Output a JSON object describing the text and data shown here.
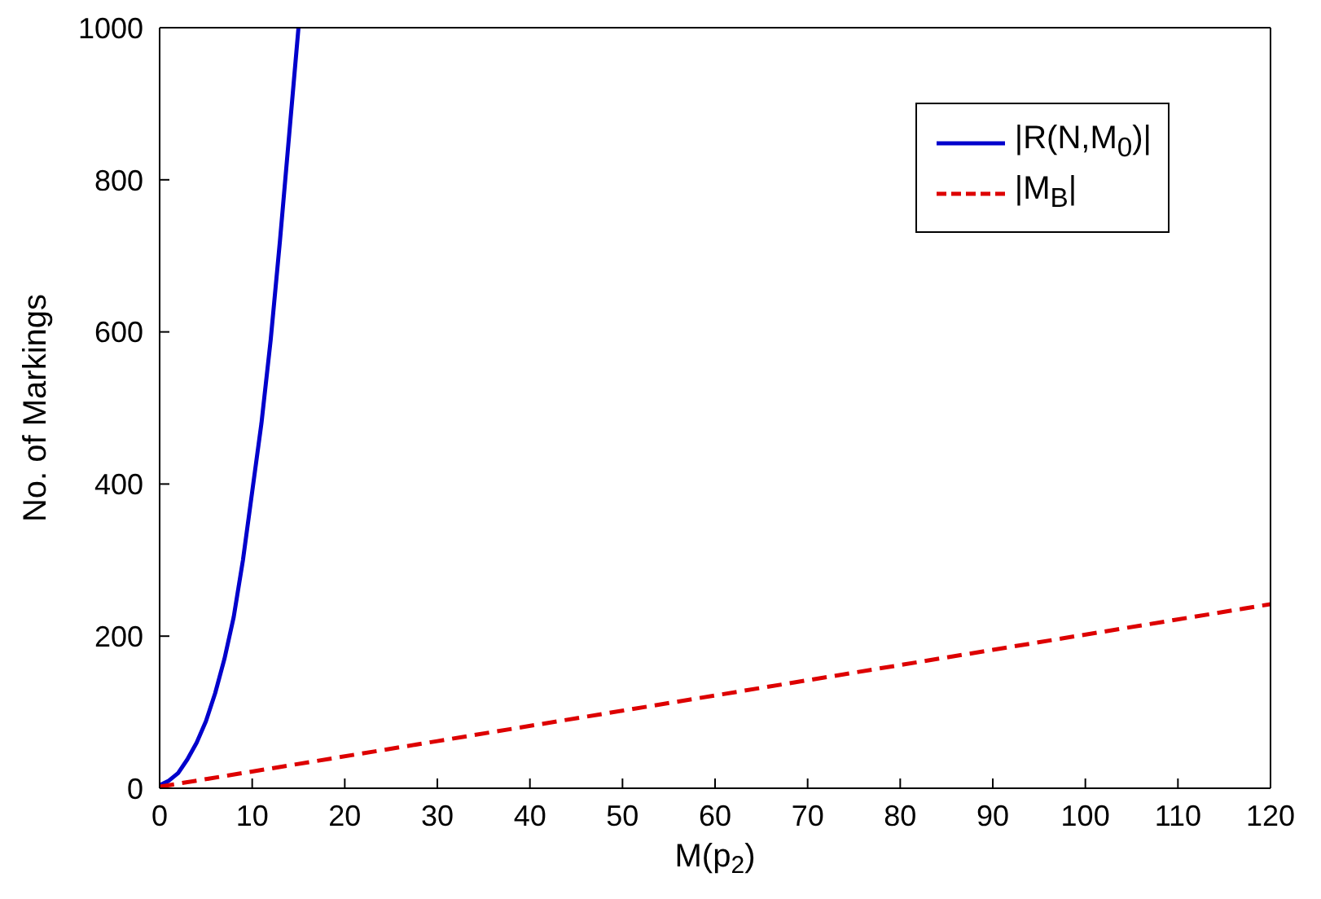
{
  "chart_data": {
    "type": "line",
    "xlabel": "M(p$_{2}$)",
    "ylabel": "No. of Markings",
    "xlim": [
      0,
      120
    ],
    "xticks": [
      0,
      10,
      20,
      30,
      40,
      50,
      60,
      70,
      80,
      90,
      100,
      110,
      120
    ],
    "ylim": [
      0,
      1000
    ],
    "yticks": [
      0,
      200,
      400,
      600,
      800,
      1000
    ],
    "legend": "top right",
    "series": [
      {
        "name": "|R(N,M$_{0}$)|",
        "color": "#0000cc",
        "line_style": "solid",
        "x": [
          0,
          1,
          2,
          3,
          4,
          5,
          6,
          7,
          8,
          9,
          10,
          11,
          12,
          13,
          14,
          15
        ],
        "values": [
          4,
          10,
          20,
          38,
          60,
          88,
          125,
          170,
          225,
          300,
          390,
          480,
          590,
          720,
          860,
          1000
        ]
      },
      {
        "name": "|M$_{B}$|",
        "color": "#dd0000",
        "line_style": "dashed",
        "x": [
          0,
          30,
          60,
          90,
          120
        ],
        "values": [
          2,
          62,
          122,
          182,
          242
        ]
      }
    ]
  }
}
